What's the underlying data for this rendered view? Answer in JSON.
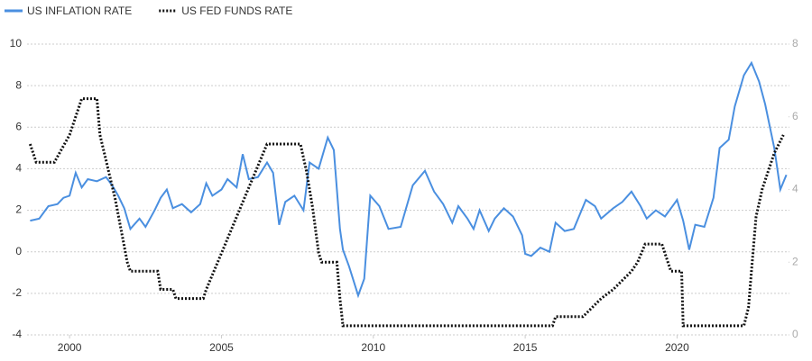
{
  "chart_data": {
    "type": "line",
    "xlim": [
      1998.6,
      2023.7
    ],
    "xticks": [
      2000,
      2005,
      2010,
      2015,
      2020
    ],
    "ylim": [
      -4,
      10
    ],
    "yticks": [
      -4,
      -2,
      0,
      2,
      4,
      6,
      8,
      10
    ],
    "y2lim": [
      0,
      8
    ],
    "y2ticks": [
      0,
      2,
      4,
      6,
      8
    ],
    "grid": true,
    "legend": "top-left",
    "series": [
      {
        "name": "US INFLATION RATE",
        "color": "#4a8fe0",
        "linestyle": "solid",
        "x": [
          1998.7,
          1999.0,
          1999.3,
          1999.6,
          1999.8,
          2000.0,
          2000.2,
          2000.4,
          2000.6,
          2000.9,
          2001.2,
          2001.4,
          2001.6,
          2001.8,
          2002.0,
          2002.3,
          2002.5,
          2002.8,
          2003.0,
          2003.2,
          2003.4,
          2003.7,
          2004.0,
          2004.3,
          2004.5,
          2004.7,
          2005.0,
          2005.2,
          2005.5,
          2005.7,
          2005.9,
          2006.2,
          2006.5,
          2006.7,
          2006.9,
          2007.1,
          2007.4,
          2007.7,
          2007.9,
          2008.2,
          2008.5,
          2008.7,
          2008.9,
          2009.0,
          2009.2,
          2009.5,
          2009.7,
          2009.9,
          2010.2,
          2010.5,
          2010.9,
          2011.3,
          2011.7,
          2012.0,
          2012.3,
          2012.6,
          2012.8,
          2013.1,
          2013.3,
          2013.5,
          2013.8,
          2014.0,
          2014.3,
          2014.6,
          2014.9,
          2015.0,
          2015.2,
          2015.5,
          2015.8,
          2016.0,
          2016.3,
          2016.6,
          2017.0,
          2017.3,
          2017.5,
          2017.9,
          2018.2,
          2018.5,
          2018.8,
          2019.0,
          2019.3,
          2019.6,
          2019.9,
          2020.0,
          2020.2,
          2020.4,
          2020.6,
          2020.9,
          2021.2,
          2021.4,
          2021.7,
          2021.9,
          2022.2,
          2022.45,
          2022.7,
          2022.9,
          2023.2,
          2023.4,
          2023.6
        ],
        "values": [
          1.5,
          1.6,
          2.2,
          2.3,
          2.6,
          2.7,
          3.8,
          3.1,
          3.5,
          3.4,
          3.6,
          3.2,
          2.7,
          2.1,
          1.1,
          1.6,
          1.2,
          2.0,
          2.6,
          3.0,
          2.1,
          2.3,
          1.9,
          2.3,
          3.3,
          2.7,
          3.0,
          3.5,
          3.1,
          4.7,
          3.5,
          3.6,
          4.3,
          3.8,
          1.3,
          2.4,
          2.7,
          2.0,
          4.3,
          4.0,
          5.5,
          4.9,
          1.1,
          0.1,
          -0.7,
          -2.1,
          -1.3,
          2.7,
          2.2,
          1.1,
          1.2,
          3.2,
          3.9,
          2.9,
          2.3,
          1.4,
          2.2,
          1.6,
          1.1,
          2.0,
          1.0,
          1.6,
          2.1,
          1.7,
          0.8,
          -0.1,
          -0.2,
          0.2,
          0.0,
          1.4,
          1.0,
          1.1,
          2.5,
          2.2,
          1.6,
          2.1,
          2.4,
          2.9,
          2.2,
          1.6,
          2.0,
          1.7,
          2.3,
          2.5,
          1.5,
          0.1,
          1.3,
          1.2,
          2.6,
          5.0,
          5.4,
          7.0,
          8.5,
          9.1,
          8.2,
          7.1,
          5.0,
          3.0,
          3.7
        ]
      },
      {
        "name": "US FED FUNDS RATE",
        "color": "#111111",
        "linestyle": "dotted",
        "axis": "y2",
        "x": [
          1998.7,
          1998.9,
          1999.5,
          2000.0,
          2000.4,
          2000.9,
          2001.0,
          2001.5,
          2001.9,
          2002.0,
          2002.9,
          2003.0,
          2003.4,
          2003.5,
          2004.4,
          2004.5,
          2005.0,
          2005.5,
          2006.0,
          2006.5,
          2007.6,
          2007.8,
          2008.0,
          2008.2,
          2008.3,
          2008.8,
          2008.9,
          2009.0,
          2015.9,
          2016.0,
          2016.9,
          2017.2,
          2017.5,
          2017.9,
          2018.2,
          2018.5,
          2018.7,
          2018.95,
          2019.5,
          2019.6,
          2019.7,
          2019.8,
          2020.15,
          2020.2,
          2022.2,
          2022.35,
          2022.45,
          2022.6,
          2022.8,
          2023.0,
          2023.2,
          2023.5
        ],
        "values": [
          5.25,
          4.75,
          4.75,
          5.5,
          6.5,
          6.5,
          5.5,
          3.75,
          2.0,
          1.75,
          1.75,
          1.25,
          1.25,
          1.0,
          1.0,
          1.25,
          2.25,
          3.25,
          4.25,
          5.25,
          5.25,
          4.5,
          3.5,
          2.25,
          2.0,
          2.0,
          1.0,
          0.25,
          0.25,
          0.5,
          0.5,
          0.75,
          1.0,
          1.25,
          1.5,
          1.75,
          2.0,
          2.5,
          2.5,
          2.25,
          2.0,
          1.75,
          1.75,
          0.25,
          0.25,
          0.75,
          1.75,
          3.25,
          4.0,
          4.5,
          5.0,
          5.5
        ]
      }
    ]
  }
}
